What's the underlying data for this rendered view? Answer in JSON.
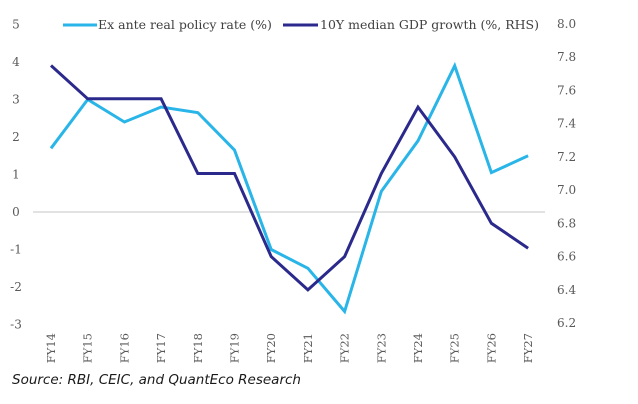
{
  "chart_data": {
    "type": "line",
    "title": "",
    "xlabel": "",
    "ylabel": "",
    "y2label": "",
    "categories": [
      "FY14",
      "FY15",
      "FY16",
      "FY17",
      "FY18",
      "FY19",
      "FY20",
      "FY21",
      "FY22",
      "FY23",
      "FY24",
      "FY25",
      "FY26",
      "FY27"
    ],
    "ylim": [
      -3,
      5
    ],
    "y_ticks": [
      5,
      4,
      3,
      2,
      1,
      0,
      -1,
      -2,
      -3
    ],
    "y_tick_labels": [
      "5",
      "4",
      "3",
      "2",
      "1",
      "0",
      "-1",
      "-2",
      "-3"
    ],
    "y2lim": [
      6.2,
      8.0
    ],
    "y2_ticks": [
      8.0,
      7.8,
      7.6,
      7.4,
      7.2,
      7.0,
      6.8,
      6.6,
      6.4,
      6.2
    ],
    "y2_tick_labels": [
      "8.0",
      "7.8",
      "7.6",
      "7.4",
      "7.2",
      "7.0",
      "6.8",
      "6.6",
      "6.4",
      "6.2"
    ],
    "grid": false,
    "zero_line": true,
    "legend_position": "top",
    "series": [
      {
        "name": "Ex ante real policy rate (%)",
        "axis": "left",
        "color": "#29b5e8",
        "values": [
          1.7,
          3.0,
          2.4,
          2.8,
          2.65,
          1.65,
          -1.0,
          -1.5,
          -2.65,
          0.55,
          1.9,
          3.9,
          1.05,
          1.5
        ]
      },
      {
        "name": "10Y median GDP growth (%, RHS)",
        "axis": "right",
        "color": "#2b2a8c",
        "values": [
          7.75,
          7.55,
          7.55,
          7.55,
          7.1,
          7.1,
          6.6,
          6.4,
          6.6,
          7.1,
          7.5,
          7.2,
          6.8,
          6.65
        ]
      }
    ]
  },
  "source": "Source: RBI, CEIC, and QuantEco Research",
  "colors": {
    "zero_line": "#d9d9d9",
    "tick_text": "#595959"
  }
}
